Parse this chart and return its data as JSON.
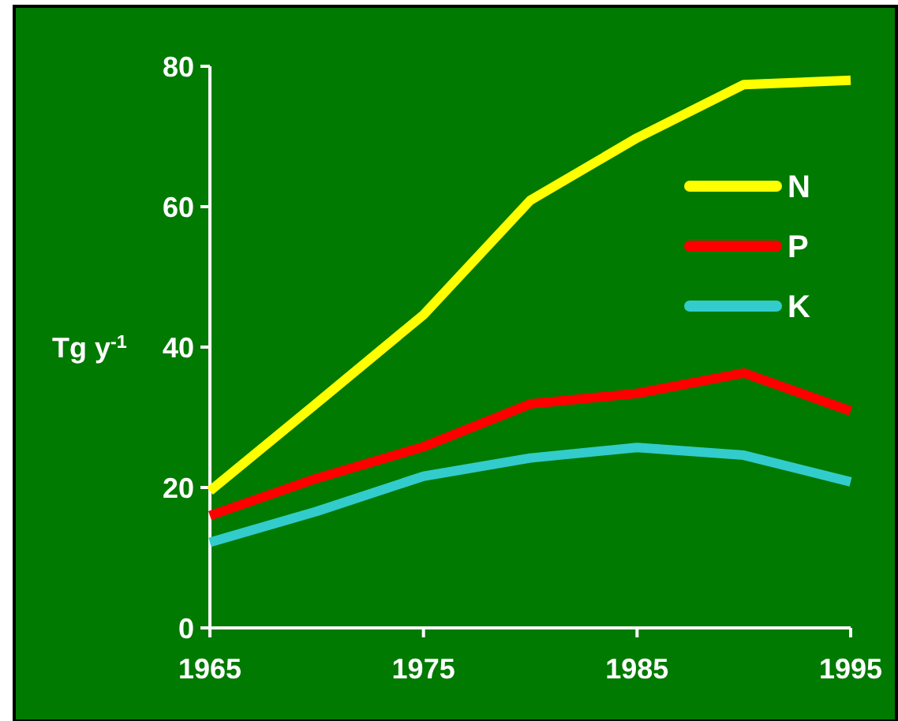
{
  "chart_data": {
    "type": "line",
    "ylabel": "Tg y$^{-1}$",
    "x": [
      1965,
      1970,
      1975,
      1980,
      1985,
      1990,
      1995
    ],
    "series": [
      {
        "name": "N",
        "color": "#ffff00",
        "values": [
          19.5,
          32,
          44.6,
          60.9,
          69.8,
          77.4,
          78
        ]
      },
      {
        "name": "P",
        "color": "#ff0000",
        "values": [
          16,
          21.3,
          25.8,
          31.9,
          33.4,
          36.3,
          30.9
        ]
      },
      {
        "name": "K",
        "color": "#33cccc",
        "values": [
          12.2,
          16.6,
          21.6,
          24.2,
          25.7,
          24.6,
          20.8
        ]
      }
    ],
    "xlim": [
      1965,
      1995
    ],
    "xticks": [
      1965,
      1975,
      1985,
      1995
    ],
    "ylim": [
      0,
      80
    ],
    "yticks": [
      0,
      20,
      40,
      60,
      80
    ],
    "grid": false,
    "legend": "top right",
    "marker": "none",
    "line_style": "solid"
  }
}
